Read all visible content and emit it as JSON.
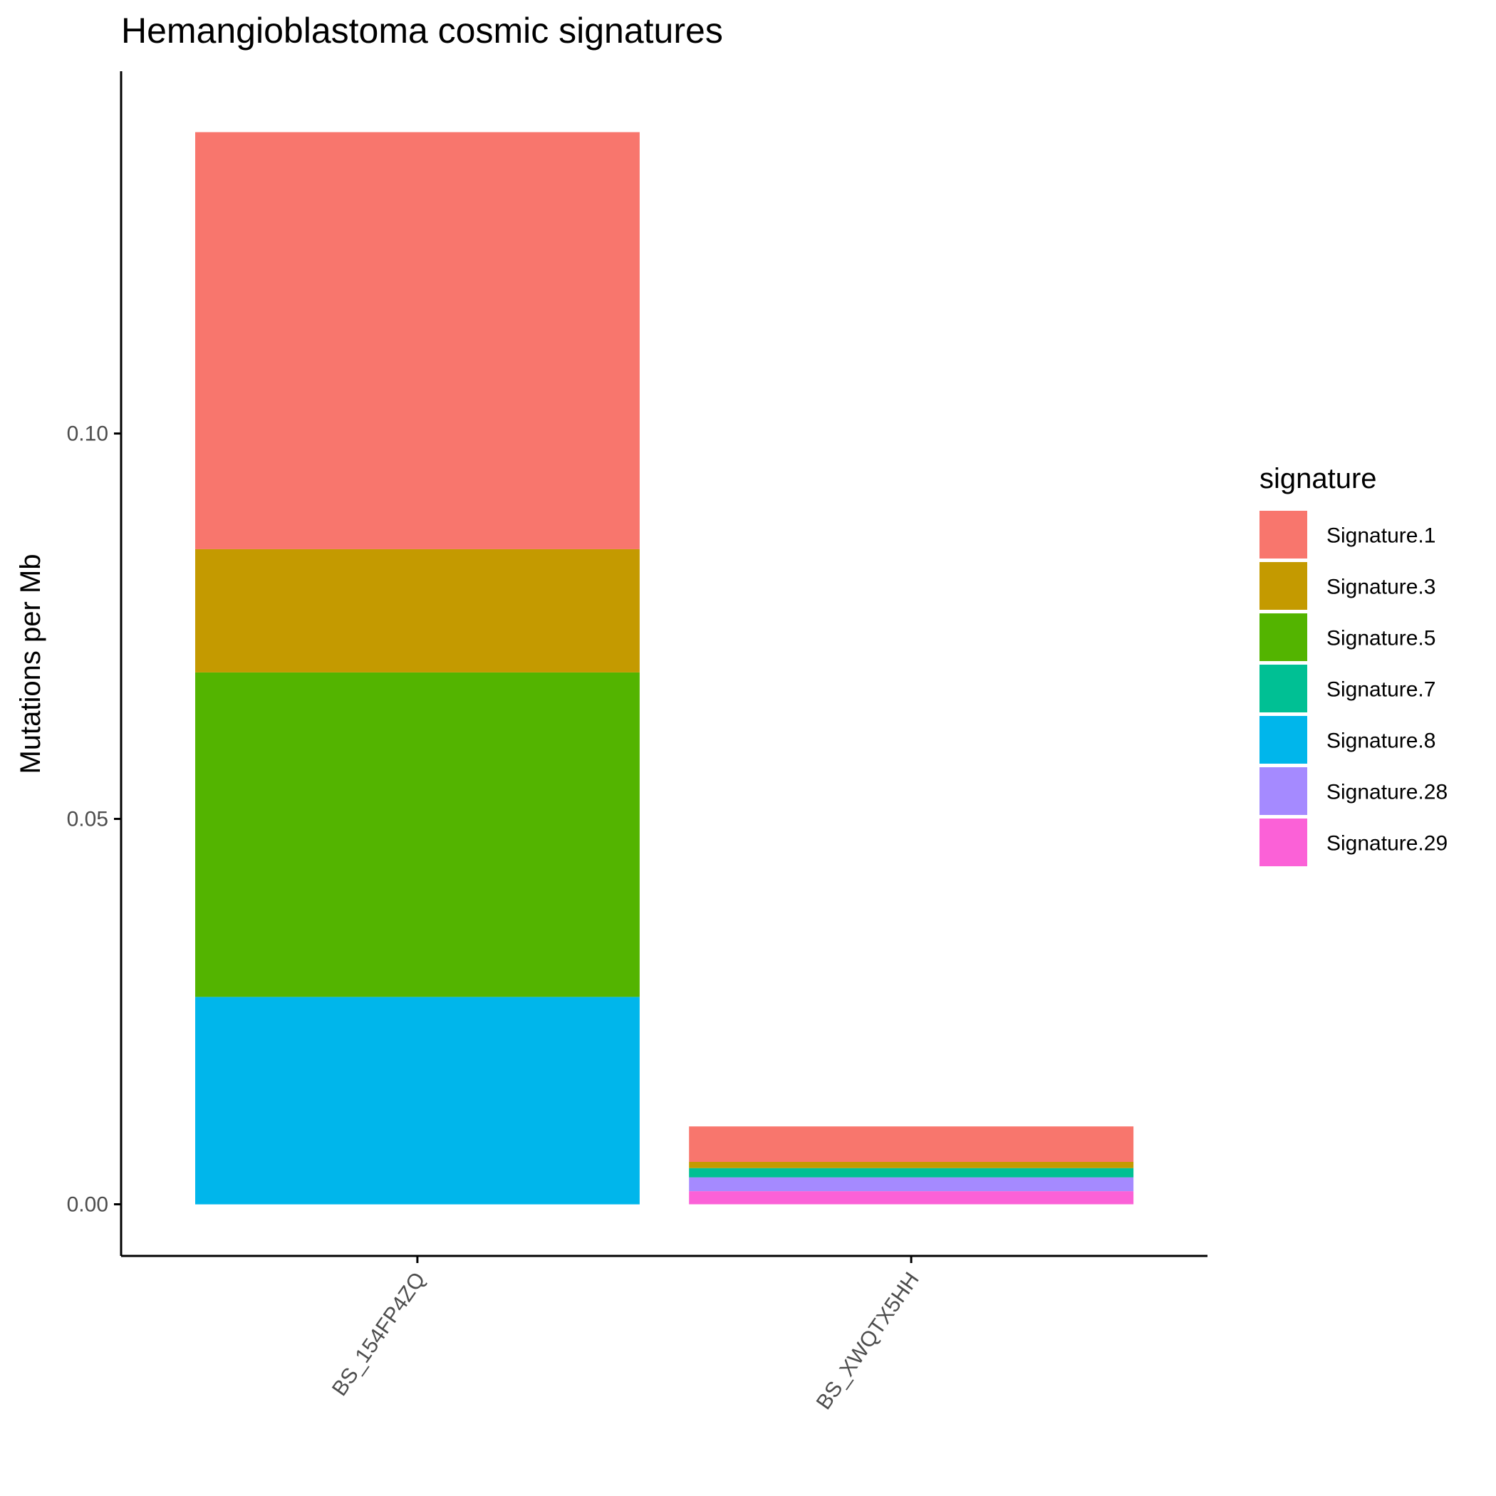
{
  "chart_data": {
    "type": "bar",
    "stacked": true,
    "title": "Hemangioblastoma cosmic signatures",
    "xlabel": "",
    "ylabel": "Mutations per Mb",
    "ylim": [
      -0.0067,
      0.147
    ],
    "yticks": [
      0.0,
      0.05,
      0.1
    ],
    "ytick_labels": [
      "0.00",
      "0.05",
      "0.10"
    ],
    "grid": false,
    "legend": {
      "title": "signature",
      "position": "right"
    },
    "categories": [
      "BS_154FP4ZQ",
      "BS_XWQTX5HH"
    ],
    "series": [
      {
        "name": "Signature.1",
        "color": "#F8766D",
        "values": [
          0.0541,
          0.0046
        ]
      },
      {
        "name": "Signature.3",
        "color": "#C49A00",
        "values": [
          0.016,
          0.0008
        ]
      },
      {
        "name": "Signature.5",
        "color": "#53B400",
        "values": [
          0.0421,
          0.0
        ]
      },
      {
        "name": "Signature.7",
        "color": "#00C094",
        "values": [
          0.0,
          0.0012
        ]
      },
      {
        "name": "Signature.8",
        "color": "#00B6EB",
        "values": [
          0.0269,
          0.0
        ]
      },
      {
        "name": "Signature.28",
        "color": "#A58AFF",
        "values": [
          0.0,
          0.0018
        ]
      },
      {
        "name": "Signature.29",
        "color": "#FB61D7",
        "values": [
          0.0,
          0.0017
        ]
      }
    ]
  }
}
